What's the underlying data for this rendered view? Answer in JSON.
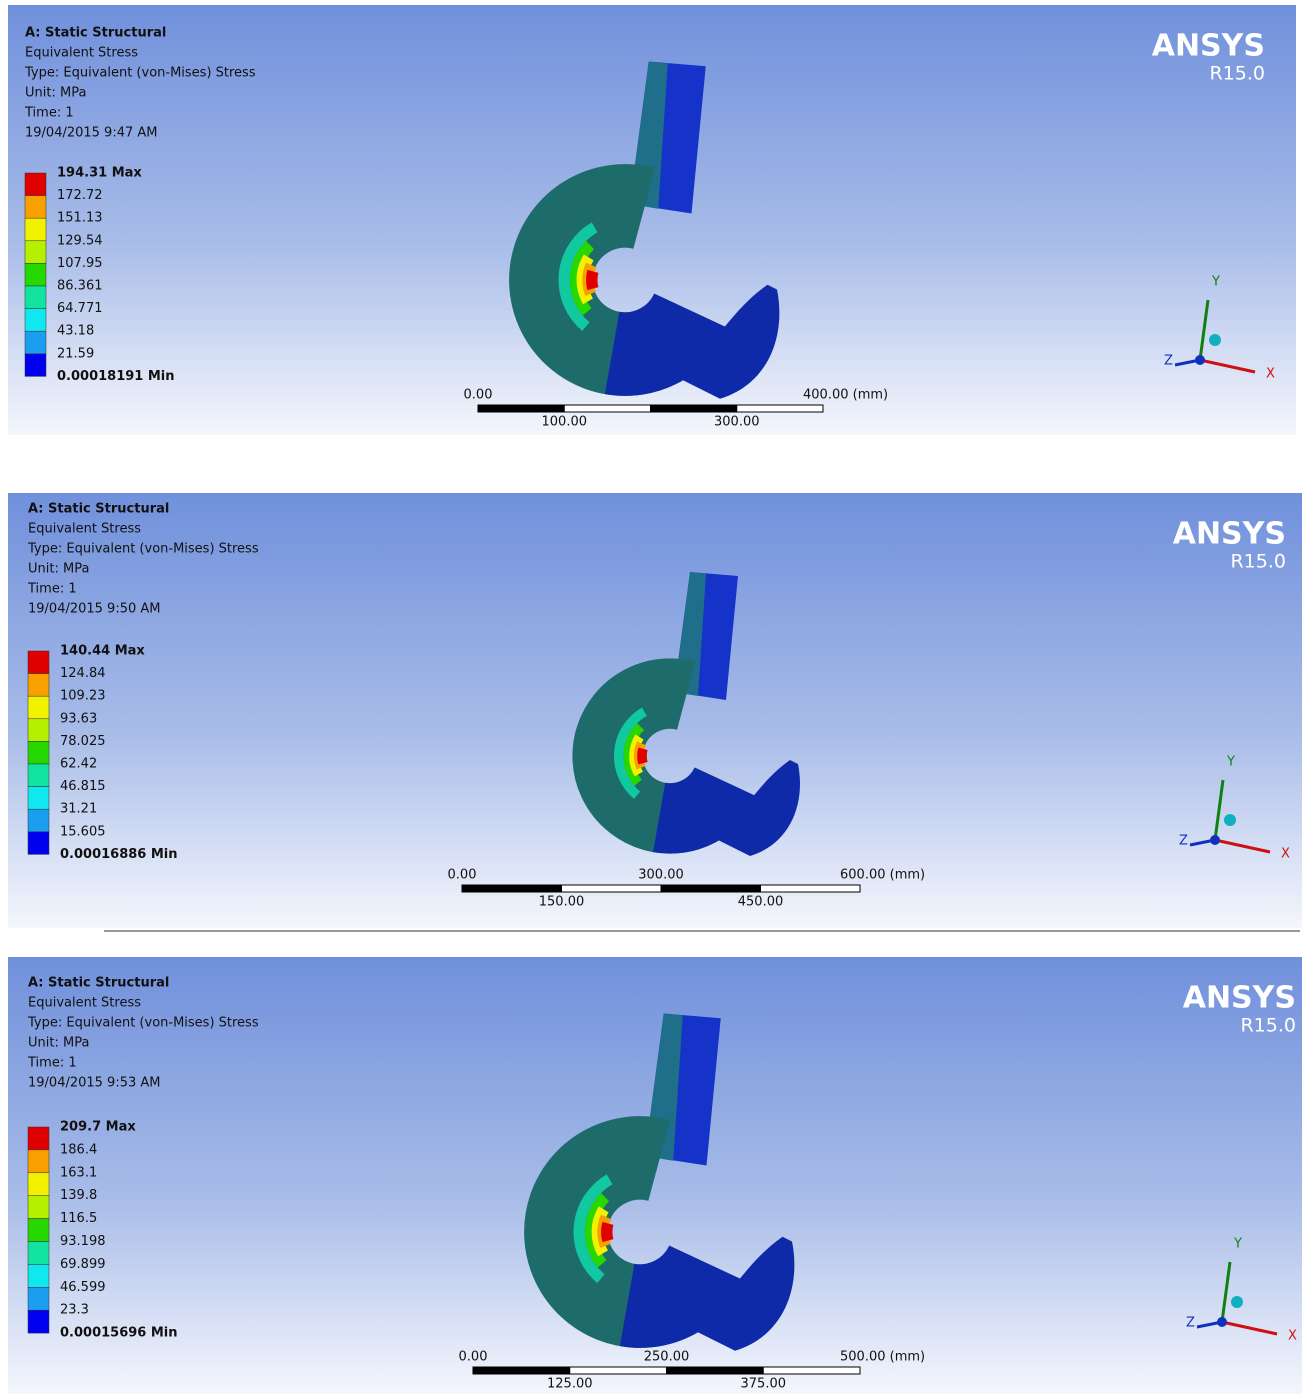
{
  "panels": [
    {
      "header": [
        "A: Static Structural",
        "Equivalent Stress",
        "Type: Equivalent (von-Mises) Stress",
        "Unit: MPa",
        "Time: 1",
        "19/04/2015 9:47 AM"
      ],
      "legend": [
        "194.31 Max",
        "172.72",
        "151.13",
        "129.54",
        "107.95",
        "86.361",
        "64.771",
        "43.18",
        "21.59",
        "0.00018191 Min"
      ],
      "scale": {
        "top": [
          "0.00",
          "400.00 (mm)"
        ],
        "bottom": [
          "100.00",
          "300.00"
        ]
      },
      "logo": {
        "name": "ANSYS",
        "version": "R15.0"
      },
      "axes": {
        "x": "X",
        "y": "Y",
        "z": "Z"
      }
    },
    {
      "header": [
        "A: Static Structural",
        "Equivalent Stress",
        "Type: Equivalent (von-Mises) Stress",
        "Unit: MPa",
        "Time: 1",
        "19/04/2015 9:50 AM"
      ],
      "legend": [
        "140.44 Max",
        "124.84",
        "109.23",
        "93.63",
        "78.025",
        "62.42",
        "46.815",
        "31.21",
        "15.605",
        "0.00016886 Min"
      ],
      "scale": {
        "top": [
          "0.00",
          "300.00",
          "600.00 (mm)"
        ],
        "bottom": [
          "150.00",
          "450.00"
        ]
      },
      "logo": {
        "name": "ANSYS",
        "version": "R15.0"
      },
      "axes": {
        "x": "X",
        "y": "Y",
        "z": "Z"
      }
    },
    {
      "header": [
        "A: Static Structural",
        "Equivalent Stress",
        "Type: Equivalent (von-Mises) Stress",
        "Unit: MPa",
        "Time: 1",
        "19/04/2015 9:53 AM"
      ],
      "legend": [
        "209.7 Max",
        "186.4",
        "163.1",
        "139.8",
        "116.5",
        "93.198",
        "69.899",
        "46.599",
        "23.3",
        "0.00015696 Min"
      ],
      "scale": {
        "top": [
          "0.00",
          "250.00",
          "500.00 (mm)"
        ],
        "bottom": [
          "125.00",
          "375.00"
        ]
      },
      "logo": {
        "name": "ANSYS",
        "version": "R15.0"
      },
      "axes": {
        "x": "X",
        "y": "Y",
        "z": "Z"
      }
    }
  ]
}
